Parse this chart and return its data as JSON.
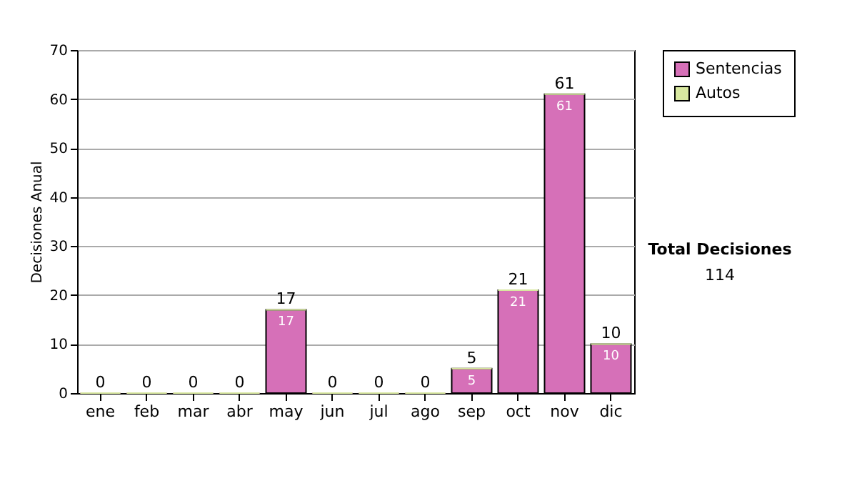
{
  "chart_data": {
    "type": "bar",
    "stacked": true,
    "ylabel": "Decisiones Anual",
    "categories": [
      "ene",
      "feb",
      "mar",
      "abr",
      "may",
      "jun",
      "jul",
      "ago",
      "sep",
      "oct",
      "nov",
      "dic"
    ],
    "series": [
      {
        "name": "Sentencias",
        "color": "#d670b8",
        "values": [
          0,
          0,
          0,
          0,
          17,
          0,
          0,
          0,
          5,
          21,
          61,
          10
        ],
        "value_labels": [
          null,
          null,
          null,
          null,
          "17",
          null,
          null,
          null,
          "5",
          "21",
          "61",
          "10"
        ]
      },
      {
        "name": "Autos",
        "color": "#d8e8a0",
        "values": [
          0,
          0,
          0,
          0,
          0,
          0,
          0,
          0,
          0,
          0,
          0,
          0
        ]
      }
    ],
    "totals": [
      "0",
      "0",
      "0",
      "0",
      "17",
      "0",
      "0",
      "0",
      "5",
      "21",
      "61",
      "10"
    ],
    "ylim": [
      0,
      70
    ],
    "yticks": [
      0,
      10,
      20,
      30,
      40,
      50,
      60,
      70
    ],
    "grid": "y",
    "legend": "right",
    "annotations": [
      "Total Decisiones",
      "114"
    ]
  }
}
